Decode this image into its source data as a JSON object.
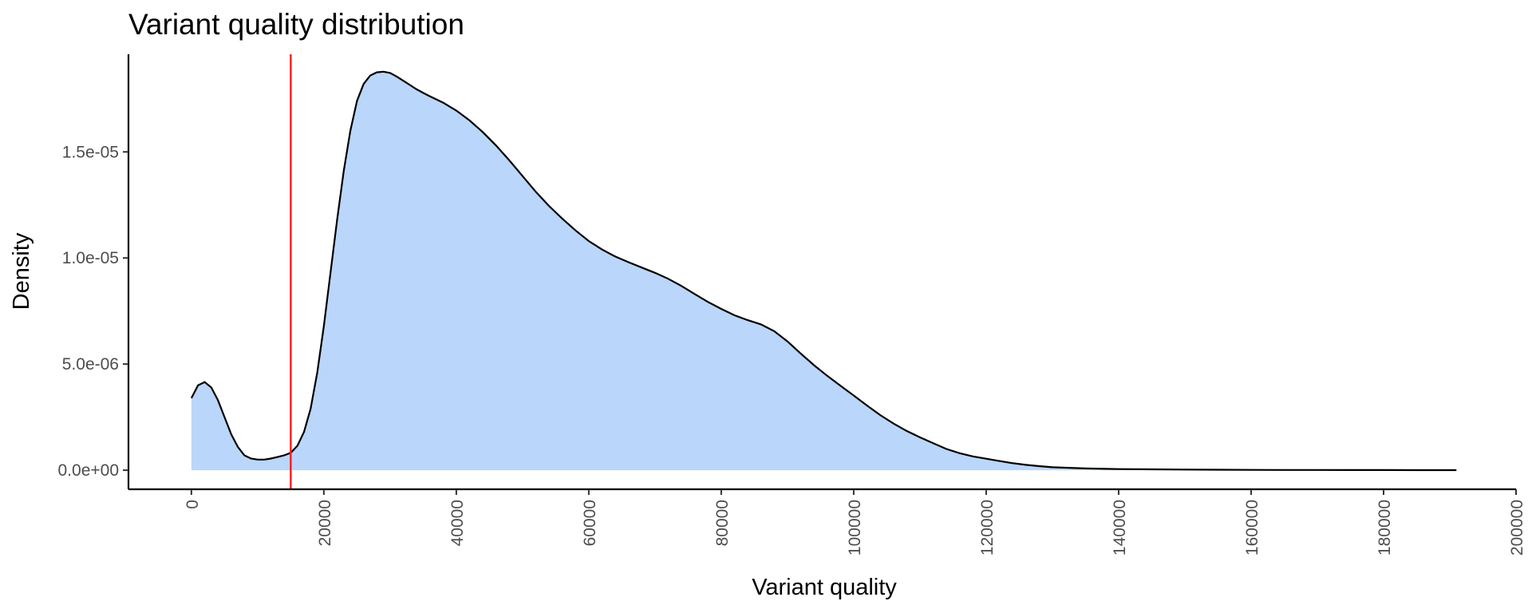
{
  "chart_data": {
    "type": "area",
    "title": "Variant quality distribution",
    "xlabel": "Variant quality",
    "ylabel": "Density",
    "xlim": [
      -9500,
      200000
    ],
    "ylim": [
      -9e-07,
      1.96e-05
    ],
    "x_ticks": [
      0,
      20000,
      40000,
      60000,
      80000,
      100000,
      120000,
      140000,
      160000,
      180000,
      200000
    ],
    "x_tick_labels": [
      "0",
      "20000",
      "40000",
      "60000",
      "80000",
      "100000",
      "120000",
      "140000",
      "160000",
      "180000",
      "200000"
    ],
    "y_ticks": [
      0,
      5e-06,
      1e-05,
      1.5e-05
    ],
    "y_tick_labels": [
      "0.0e+00",
      "5.0e-06",
      "1.0e-05",
      "1.5e-05"
    ],
    "grid": false,
    "legend": "none",
    "series": [
      {
        "x": [
          0,
          1000,
          2000,
          3000,
          4000,
          5000,
          6000,
          7000,
          8000,
          9000,
          10000,
          11000,
          12000,
          13000,
          14000,
          15000,
          16000,
          17000,
          18000,
          19000,
          20000,
          21000,
          22000,
          23000,
          24000,
          25000,
          26000,
          27000,
          28000,
          29000,
          30000,
          31000,
          32000,
          33000,
          34000,
          35000,
          36000,
          38000,
          40000,
          42000,
          44000,
          46000,
          48000,
          50000,
          52000,
          54000,
          56000,
          58000,
          60000,
          62000,
          64000,
          66000,
          68000,
          70000,
          72000,
          74000,
          76000,
          78000,
          80000,
          82000,
          84000,
          86000,
          88000,
          90000,
          92000,
          94000,
          96000,
          98000,
          100000,
          102000,
          104000,
          106000,
          108000,
          110000,
          112000,
          114000,
          116000,
          118000,
          120000,
          122000,
          124000,
          126000,
          128000,
          130000,
          135000,
          140000,
          145000,
          150000,
          155000,
          160000,
          165000,
          170000,
          175000,
          180000,
          185000,
          190000,
          191000
        ],
        "y": [
          3.4e-06,
          4e-06,
          4.15e-06,
          3.9e-06,
          3.3e-06,
          2.5e-06,
          1.7e-06,
          1.1e-06,
          7e-07,
          5.5e-07,
          5e-07,
          5e-07,
          5.5e-07,
          6.2e-07,
          7e-07,
          8.2e-07,
          1.15e-06,
          1.8e-06,
          2.9e-06,
          4.6e-06,
          6.8e-06,
          9.3e-06,
          1.18e-05,
          1.41e-05,
          1.6e-05,
          1.74e-05,
          1.82e-05,
          1.86e-05,
          1.875e-05,
          1.878e-05,
          1.872e-05,
          1.855e-05,
          1.835e-05,
          1.815e-05,
          1.795e-05,
          1.778e-05,
          1.762e-05,
          1.732e-05,
          1.695e-05,
          1.648e-05,
          1.593e-05,
          1.53e-05,
          1.46e-05,
          1.386e-05,
          1.312e-05,
          1.245e-05,
          1.185e-05,
          1.13e-05,
          1.08e-05,
          1.04e-05,
          1.007e-05,
          9.8e-06,
          9.55e-06,
          9.3e-06,
          9.02e-06,
          8.68e-06,
          8.3e-06,
          7.93e-06,
          7.6e-06,
          7.3e-06,
          7.07e-06,
          6.87e-06,
          6.55e-06,
          6.07e-06,
          5.5e-06,
          4.95e-06,
          4.45e-06,
          3.98e-06,
          3.52e-06,
          3.05e-06,
          2.6e-06,
          2.2e-06,
          1.85e-06,
          1.55e-06,
          1.27e-06,
          1e-06,
          8e-07,
          6.5e-07,
          5.4e-07,
          4.3e-07,
          3.3e-07,
          2.5e-07,
          1.9e-07,
          1.4e-07,
          8e-08,
          5e-08,
          4e-08,
          3e-08,
          2e-08,
          1.5e-08,
          1.2e-08,
          1e-08,
          8e-09,
          6e-09,
          4e-09,
          3e-09,
          3e-09
        ],
        "fill_color": "#bad6fb",
        "line_color": "#000000"
      }
    ],
    "vline": {
      "x": 15000,
      "color": "#ff1a1a"
    }
  }
}
